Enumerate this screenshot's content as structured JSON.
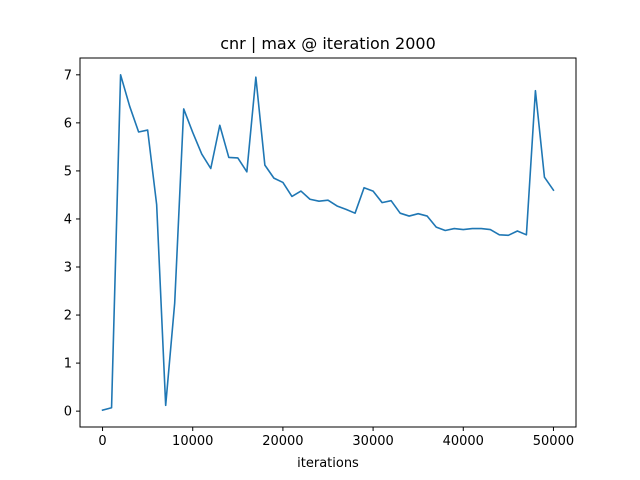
{
  "chart_data": {
    "type": "line",
    "title": "cnr | max @ iteration 2000",
    "xlabel": "iterations",
    "ylabel": "",
    "xlim": [
      -2500,
      52500
    ],
    "ylim": [
      -0.33,
      7.35
    ],
    "xticks": [
      0,
      10000,
      20000,
      30000,
      40000,
      50000
    ],
    "xtick_labels": [
      "0",
      "10000",
      "20000",
      "30000",
      "40000",
      "50000"
    ],
    "yticks": [
      0,
      1,
      2,
      3,
      4,
      5,
      6,
      7
    ],
    "ytick_labels": [
      "0",
      "1",
      "2",
      "3",
      "4",
      "5",
      "6",
      "7"
    ],
    "grid": false,
    "colors": {
      "line": "#1f77b4",
      "axes": "#000000",
      "background": "#ffffff"
    },
    "series": [
      {
        "x": [
          0,
          1000,
          2000,
          3000,
          4000,
          5000,
          6000,
          7000,
          8000,
          9000,
          10000,
          11000,
          12000,
          13000,
          14000,
          15000,
          16000,
          17000,
          18000,
          19000,
          20000,
          21000,
          22000,
          23000,
          24000,
          25000,
          26000,
          27000,
          28000,
          29000,
          30000,
          31000,
          32000,
          33000,
          34000,
          35000,
          36000,
          37000,
          38000,
          39000,
          40000,
          41000,
          42000,
          43000,
          44000,
          45000,
          46000,
          47000,
          48000,
          49000,
          50000
        ],
        "values": [
          0.02,
          0.07,
          7.0,
          6.35,
          5.81,
          5.85,
          4.3,
          0.12,
          2.25,
          6.29,
          5.8,
          5.35,
          5.05,
          5.95,
          5.28,
          5.27,
          4.98,
          6.95,
          5.12,
          4.85,
          4.76,
          4.47,
          4.58,
          4.41,
          4.37,
          4.39,
          4.27,
          4.2,
          4.12,
          4.65,
          4.58,
          4.34,
          4.38,
          4.12,
          4.06,
          4.11,
          4.06,
          3.83,
          3.76,
          3.8,
          3.78,
          3.8,
          3.8,
          3.78,
          3.67,
          3.66,
          3.75,
          3.67,
          6.67,
          4.87,
          4.6
        ]
      }
    ]
  }
}
